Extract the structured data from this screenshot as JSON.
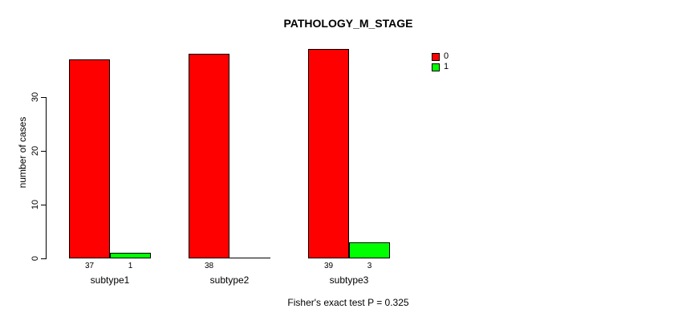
{
  "chart_data": {
    "type": "bar",
    "title": "PATHOLOGY_M_STAGE",
    "ylabel": "number of cases",
    "xlabel": "",
    "footnote": "Fisher's exact test P = 0.325",
    "categories": [
      "subtype1",
      "subtype2",
      "subtype3"
    ],
    "series": [
      {
        "name": "0",
        "color": "#ff0000",
        "values": [
          37,
          38,
          39
        ]
      },
      {
        "name": "1",
        "color": "#00ff00",
        "values": [
          1,
          0,
          3
        ]
      }
    ],
    "bar_value_labels": [
      [
        "37",
        "1"
      ],
      [
        "38",
        ""
      ],
      [
        "39",
        "3"
      ]
    ],
    "yticks": [
      0,
      10,
      20,
      30
    ],
    "ylim": [
      0,
      30
    ],
    "grid": false,
    "bar_border_color": "#000000",
    "legend": {
      "position": "top-right",
      "entries": [
        {
          "label": "0",
          "color": "#ff0000"
        },
        {
          "label": "1",
          "color": "#00ff00"
        }
      ]
    }
  }
}
